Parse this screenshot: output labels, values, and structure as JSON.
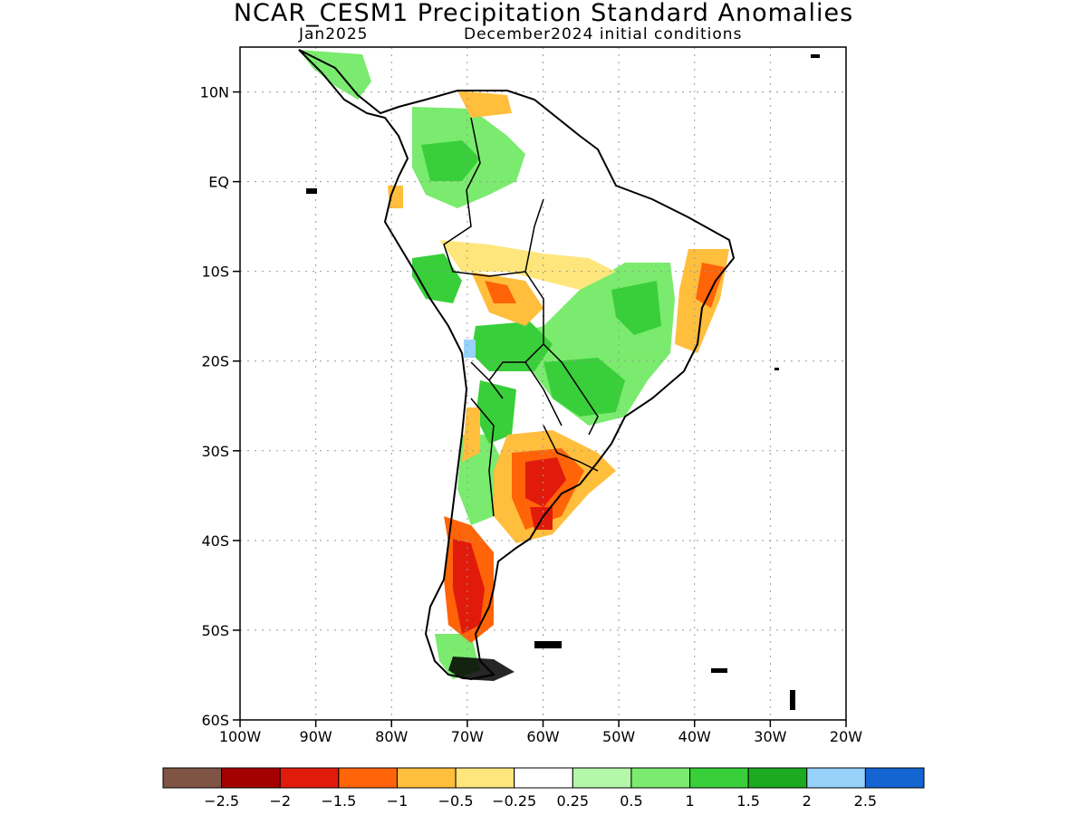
{
  "title": "NCAR_CESM1 Precipitation Standard Anomalies",
  "subtitle_left": "Jan2025",
  "subtitle_right": "December2024 initial conditions",
  "map": {
    "lon_range": [
      -100,
      -20
    ],
    "lat_range": [
      -60,
      15
    ],
    "lat_ticks": [
      {
        "value": 10,
        "label": "10N"
      },
      {
        "value": 0,
        "label": "EQ"
      },
      {
        "value": -10,
        "label": "10S"
      },
      {
        "value": -20,
        "label": "20S"
      },
      {
        "value": -30,
        "label": "30S"
      },
      {
        "value": -40,
        "label": "40S"
      },
      {
        "value": -50,
        "label": "50S"
      },
      {
        "value": -60,
        "label": "60S"
      }
    ],
    "lon_ticks": [
      {
        "value": -100,
        "label": "100W"
      },
      {
        "value": -90,
        "label": "90W"
      },
      {
        "value": -80,
        "label": "80W"
      },
      {
        "value": -70,
        "label": "70W"
      },
      {
        "value": -60,
        "label": "60W"
      },
      {
        "value": -50,
        "label": "50W"
      },
      {
        "value": -40,
        "label": "40W"
      },
      {
        "value": -30,
        "label": "30W"
      },
      {
        "value": -20,
        "label": "20W"
      }
    ],
    "grid": "dotted"
  },
  "colorbar": {
    "colors": [
      "#7f5445",
      "#a50000",
      "#e11b0b",
      "#ff6408",
      "#ffbe3c",
      "#ffe67c",
      "#ffffff",
      "#b5f7a8",
      "#7aeb6e",
      "#39cf3a",
      "#1caa21",
      "#96d2fa",
      "#1464d2"
    ],
    "labels": [
      "-2.5",
      "-2",
      "-1.5",
      "-1",
      "-0.5",
      "-0.25",
      "0.25",
      "0.5",
      "1",
      "1.5",
      "2",
      "2.5"
    ]
  }
}
